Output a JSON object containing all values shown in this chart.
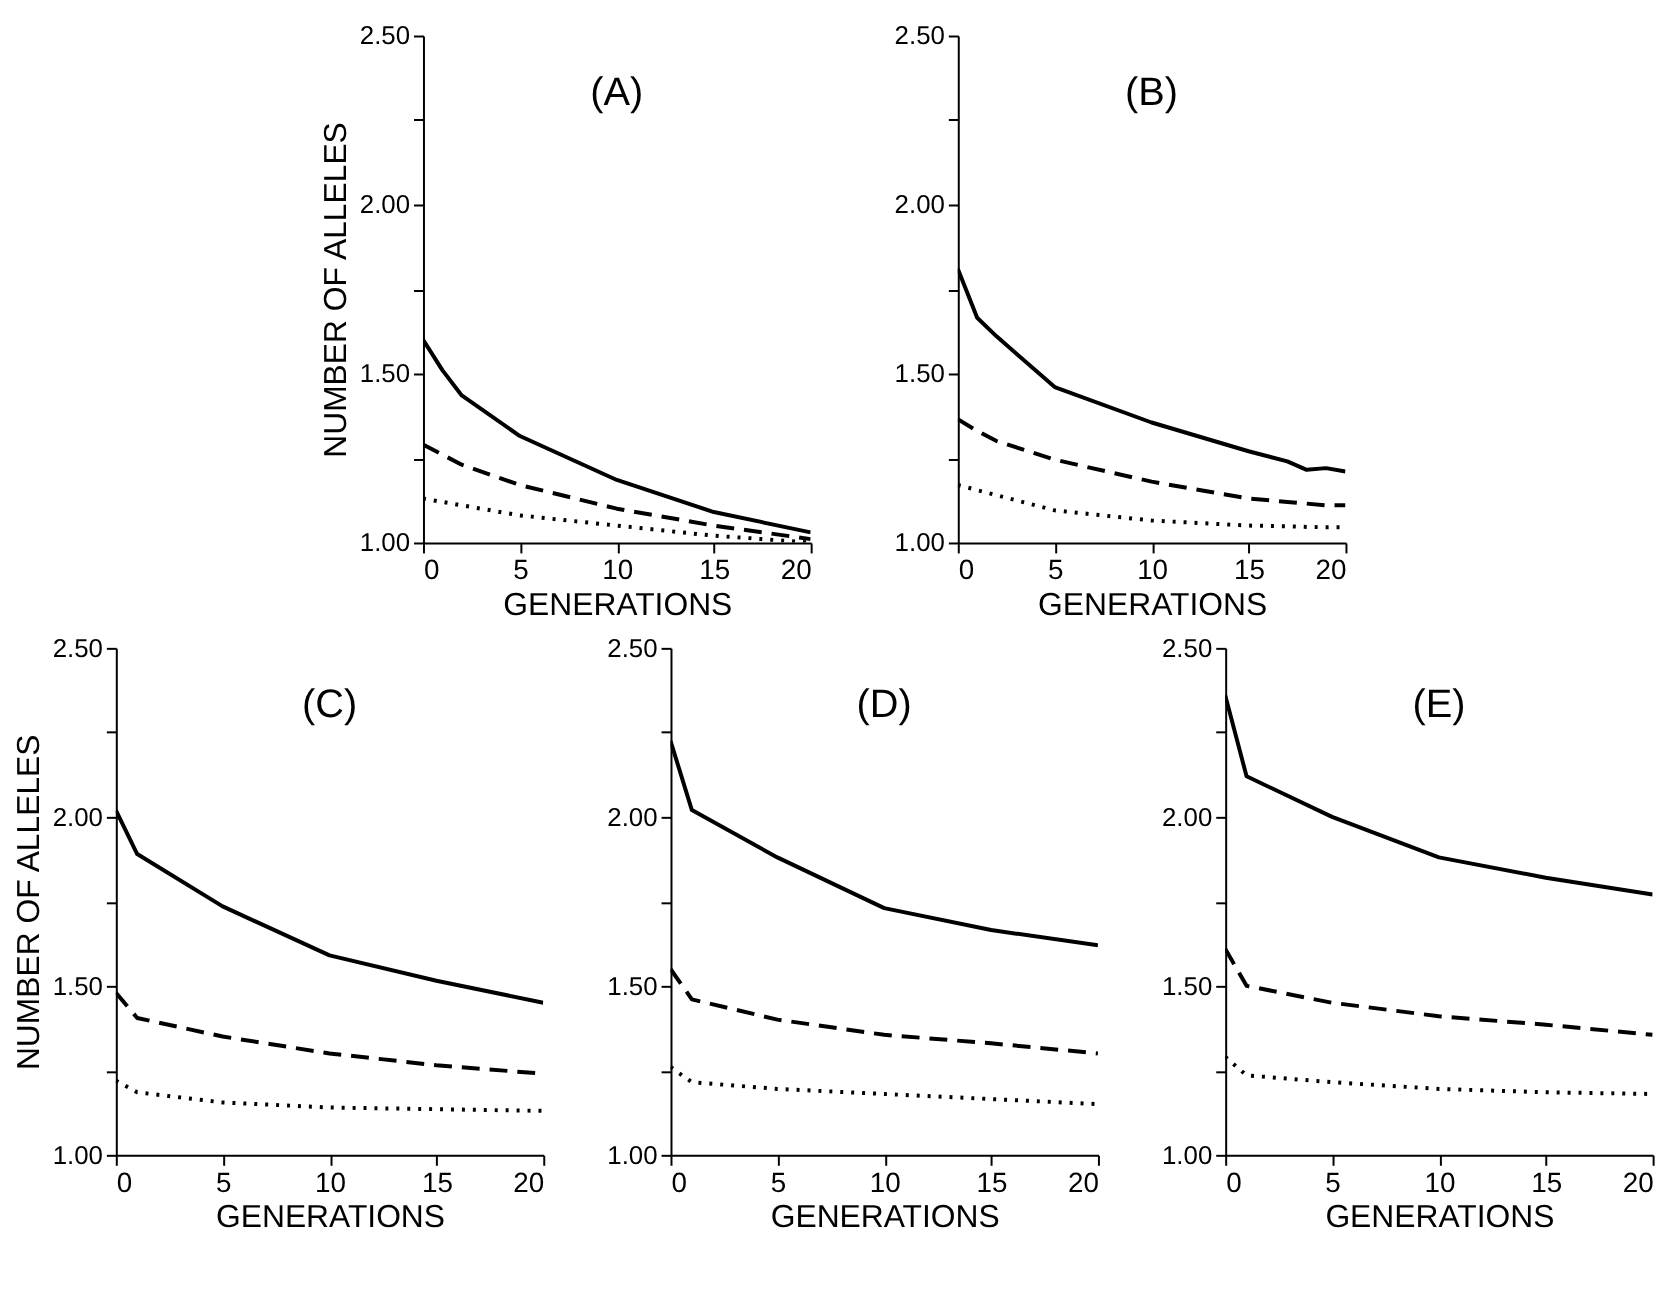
{
  "chart_data": [
    {
      "type": "line",
      "title": "(A)",
      "xlabel": "GENERATIONS",
      "ylabel": "NUMBER OF ALLELES",
      "xlim": [
        0,
        20
      ],
      "ylim": [
        1,
        2.5
      ],
      "xticks": [
        0,
        5,
        10,
        15,
        20
      ],
      "yticks": [
        {
          "value": 1,
          "label": "1.00"
        },
        {
          "value": 1.25,
          "label": null
        },
        {
          "value": 1.5,
          "label": "1.50"
        },
        {
          "value": 1.75,
          "label": null
        },
        {
          "value": 2,
          "label": "2.00"
        },
        {
          "value": 2.25,
          "label": null
        },
        {
          "value": 2.5,
          "label": "2.50"
        }
      ],
      "grid": false,
      "legend": false,
      "x": [
        0,
        1,
        2,
        5,
        10,
        15,
        20
      ],
      "series": [
        {
          "color": "#000000",
          "line_style": "solid",
          "values": [
            1.6,
            1.51,
            1.435,
            1.315,
            1.185,
            1.09,
            1.03
          ]
        },
        {
          "color": "#000000",
          "line_style": "dashed",
          "values": [
            1.29,
            1.26,
            1.23,
            1.17,
            1.1,
            1.05,
            1.01
          ]
        },
        {
          "color": "#000000",
          "line_style": "dotted",
          "values": [
            1.13,
            1.12,
            1.11,
            1.08,
            1.05,
            1.02,
            1.0
          ]
        }
      ]
    },
    {
      "type": "line",
      "title": "(B)",
      "xlabel": "GENERATIONS",
      "xlim": [
        0,
        20
      ],
      "ylim": [
        1,
        2.5
      ],
      "xticks": [
        0,
        5,
        10,
        15,
        20
      ],
      "yticks": [
        {
          "value": 1,
          "label": "1.00"
        },
        {
          "value": 1.25,
          "label": null
        },
        {
          "value": 1.5,
          "label": "1.50"
        },
        {
          "value": 1.75,
          "label": null
        },
        {
          "value": 2,
          "label": "2.00"
        },
        {
          "value": 2.25,
          "label": null
        },
        {
          "value": 2.5,
          "label": "2.50"
        }
      ],
      "grid": false,
      "legend": false,
      "x": [
        0,
        1,
        2,
        5,
        10,
        15,
        17,
        18,
        19,
        20
      ],
      "series": [
        {
          "color": "#000000",
          "line_style": "solid",
          "values": [
            1.81,
            1.665,
            1.61,
            1.46,
            1.355,
            1.27,
            1.24,
            1.215,
            1.22,
            1.21
          ]
        },
        {
          "color": "#000000",
          "line_style": "dashed",
          "values": [
            1.365,
            1.33,
            1.3,
            1.245,
            1.18,
            1.13,
            1.12,
            1.115,
            1.11,
            1.11
          ]
        },
        {
          "color": "#000000",
          "line_style": "dotted",
          "values": [
            1.17,
            1.155,
            1.14,
            1.095,
            1.065,
            1.05,
            1.048,
            1.046,
            1.045,
            1.045
          ]
        }
      ]
    },
    {
      "type": "line",
      "title": "(C)",
      "xlabel": "GENERATIONS",
      "ylabel": "NUMBER OF ALLELES",
      "xlim": [
        0,
        20
      ],
      "ylim": [
        1,
        2.5
      ],
      "xticks": [
        0,
        5,
        10,
        15,
        20
      ],
      "yticks": [
        {
          "value": 1,
          "label": "1.00"
        },
        {
          "value": 1.25,
          "label": null
        },
        {
          "value": 1.5,
          "label": "1.50"
        },
        {
          "value": 1.75,
          "label": null
        },
        {
          "value": 2,
          "label": "2.00"
        },
        {
          "value": 2.25,
          "label": null
        },
        {
          "value": 2.5,
          "label": "2.50"
        }
      ],
      "grid": false,
      "legend": false,
      "x": [
        0,
        1,
        5,
        10,
        15,
        20
      ],
      "series": [
        {
          "color": "#000000",
          "line_style": "solid",
          "values": [
            2.02,
            1.89,
            1.735,
            1.59,
            1.515,
            1.45
          ]
        },
        {
          "color": "#000000",
          "line_style": "dashed",
          "values": [
            1.48,
            1.405,
            1.35,
            1.3,
            1.265,
            1.24
          ]
        },
        {
          "color": "#000000",
          "line_style": "dotted",
          "values": [
            1.22,
            1.185,
            1.155,
            1.14,
            1.135,
            1.13
          ]
        }
      ]
    },
    {
      "type": "line",
      "title": "(D)",
      "xlabel": "GENERATIONS",
      "xlim": [
        0,
        20
      ],
      "ylim": [
        1,
        2.5
      ],
      "xticks": [
        0,
        5,
        10,
        15,
        20
      ],
      "yticks": [
        {
          "value": 1,
          "label": "1.00"
        },
        {
          "value": 1.25,
          "label": null
        },
        {
          "value": 1.5,
          "label": "1.50"
        },
        {
          "value": 1.75,
          "label": null
        },
        {
          "value": 2,
          "label": "2.00"
        },
        {
          "value": 2.25,
          "label": null
        },
        {
          "value": 2.5,
          "label": "2.50"
        }
      ],
      "grid": false,
      "legend": false,
      "x": [
        0,
        1,
        5,
        10,
        15,
        20
      ],
      "series": [
        {
          "color": "#000000",
          "line_style": "solid",
          "values": [
            2.225,
            2.02,
            1.88,
            1.73,
            1.665,
            1.62
          ]
        },
        {
          "color": "#000000",
          "line_style": "dashed",
          "values": [
            1.55,
            1.46,
            1.4,
            1.355,
            1.33,
            1.3
          ]
        },
        {
          "color": "#000000",
          "line_style": "dotted",
          "values": [
            1.26,
            1.215,
            1.195,
            1.18,
            1.165,
            1.15
          ]
        }
      ]
    },
    {
      "type": "line",
      "title": "(E)",
      "xlabel": "GENERATIONS",
      "xlim": [
        0,
        20
      ],
      "ylim": [
        1,
        2.5
      ],
      "xticks": [
        0,
        5,
        10,
        15,
        20
      ],
      "yticks": [
        {
          "value": 1,
          "label": "1.00"
        },
        {
          "value": 1.25,
          "label": null
        },
        {
          "value": 1.5,
          "label": "1.50"
        },
        {
          "value": 1.75,
          "label": null
        },
        {
          "value": 2,
          "label": "2.00"
        },
        {
          "value": 2.25,
          "label": null
        },
        {
          "value": 2.5,
          "label": "2.50"
        }
      ],
      "grid": false,
      "legend": false,
      "x": [
        0,
        1,
        5,
        10,
        15,
        20
      ],
      "series": [
        {
          "color": "#000000",
          "line_style": "solid",
          "values": [
            2.36,
            2.12,
            2.0,
            1.88,
            1.82,
            1.77
          ]
        },
        {
          "color": "#000000",
          "line_style": "dashed",
          "values": [
            1.61,
            1.5,
            1.45,
            1.41,
            1.385,
            1.355
          ]
        },
        {
          "color": "#000000",
          "line_style": "dotted",
          "values": [
            1.29,
            1.235,
            1.215,
            1.195,
            1.185,
            1.18
          ]
        }
      ]
    }
  ]
}
